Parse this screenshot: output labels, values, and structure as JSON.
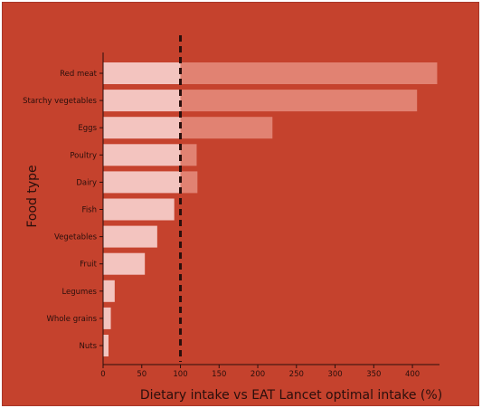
{
  "chart_data": {
    "type": "bar",
    "orientation": "horizontal",
    "title": "",
    "xlabel": "Dietary intake vs EAT Lancet optimal intake (%)",
    "ylabel": "Food type",
    "categories": [
      "Red meat",
      "Starchy vegetables",
      "Eggs",
      "Poultry",
      "Dairy",
      "Fish",
      "Vegetables",
      "Fruit",
      "Legumes",
      "Whole grains",
      "Nuts"
    ],
    "values": [
      432,
      406,
      219,
      121,
      122,
      92,
      70,
      54,
      15,
      10,
      7
    ],
    "xlim": [
      0,
      435
    ],
    "xticks": [
      0,
      50,
      100,
      150,
      200,
      250,
      300,
      350,
      400
    ],
    "reference_line": 100,
    "grid": false,
    "colors": {
      "background": "#c5422d",
      "bar_within": "#f3c4bf",
      "bar_excess": "#e18272",
      "axis": "#2a0f0c",
      "reference_line": "#2a0f0c"
    }
  }
}
